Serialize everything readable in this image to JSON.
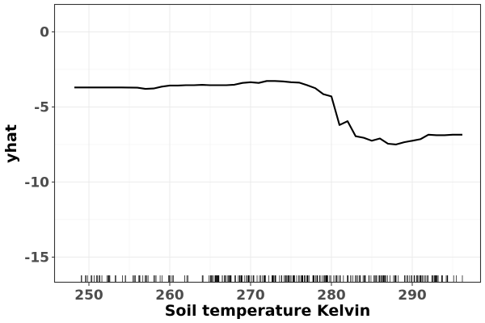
{
  "chart_data": {
    "type": "line",
    "title": "",
    "xlabel": "Soil temperature Kelvin",
    "ylabel": "yhat",
    "xlim": [
      245.8,
      298.4
    ],
    "ylim": [
      -16.7,
      1.8
    ],
    "x_ticks": [
      250,
      260,
      270,
      280,
      290
    ],
    "x_tick_labels": [
      "250",
      "260",
      "270",
      "280",
      "290"
    ],
    "y_ticks": [
      0,
      -5,
      -10,
      -15
    ],
    "y_tick_labels": [
      "0",
      "-5",
      "-10",
      "-15"
    ],
    "grid": true,
    "legend": "none",
    "series": [
      {
        "name": "",
        "color": "#000000",
        "x": [
          248.2,
          250,
          252,
          254,
          256,
          257,
          258,
          259,
          260,
          261,
          262,
          263,
          264,
          265,
          266,
          267,
          268,
          269,
          270,
          271,
          272,
          273,
          274,
          275,
          276,
          277,
          278,
          279,
          280,
          281,
          282,
          283,
          284,
          285,
          286,
          287,
          288,
          289,
          290,
          291,
          292,
          293,
          294,
          295,
          296.2
        ],
        "y": [
          -3.7,
          -3.7,
          -3.7,
          -3.7,
          -3.72,
          -3.8,
          -3.77,
          -3.65,
          -3.57,
          -3.57,
          -3.55,
          -3.55,
          -3.53,
          -3.55,
          -3.55,
          -3.55,
          -3.52,
          -3.4,
          -3.35,
          -3.4,
          -3.27,
          -3.27,
          -3.3,
          -3.35,
          -3.38,
          -3.55,
          -3.75,
          -4.15,
          -4.3,
          -6.2,
          -5.95,
          -6.95,
          -7.05,
          -7.25,
          -7.1,
          -7.45,
          -7.5,
          -7.35,
          -7.25,
          -7.15,
          -6.85,
          -6.88,
          -6.88,
          -6.85,
          -6.85
        ]
      }
    ],
    "rug_ticks": true
  }
}
